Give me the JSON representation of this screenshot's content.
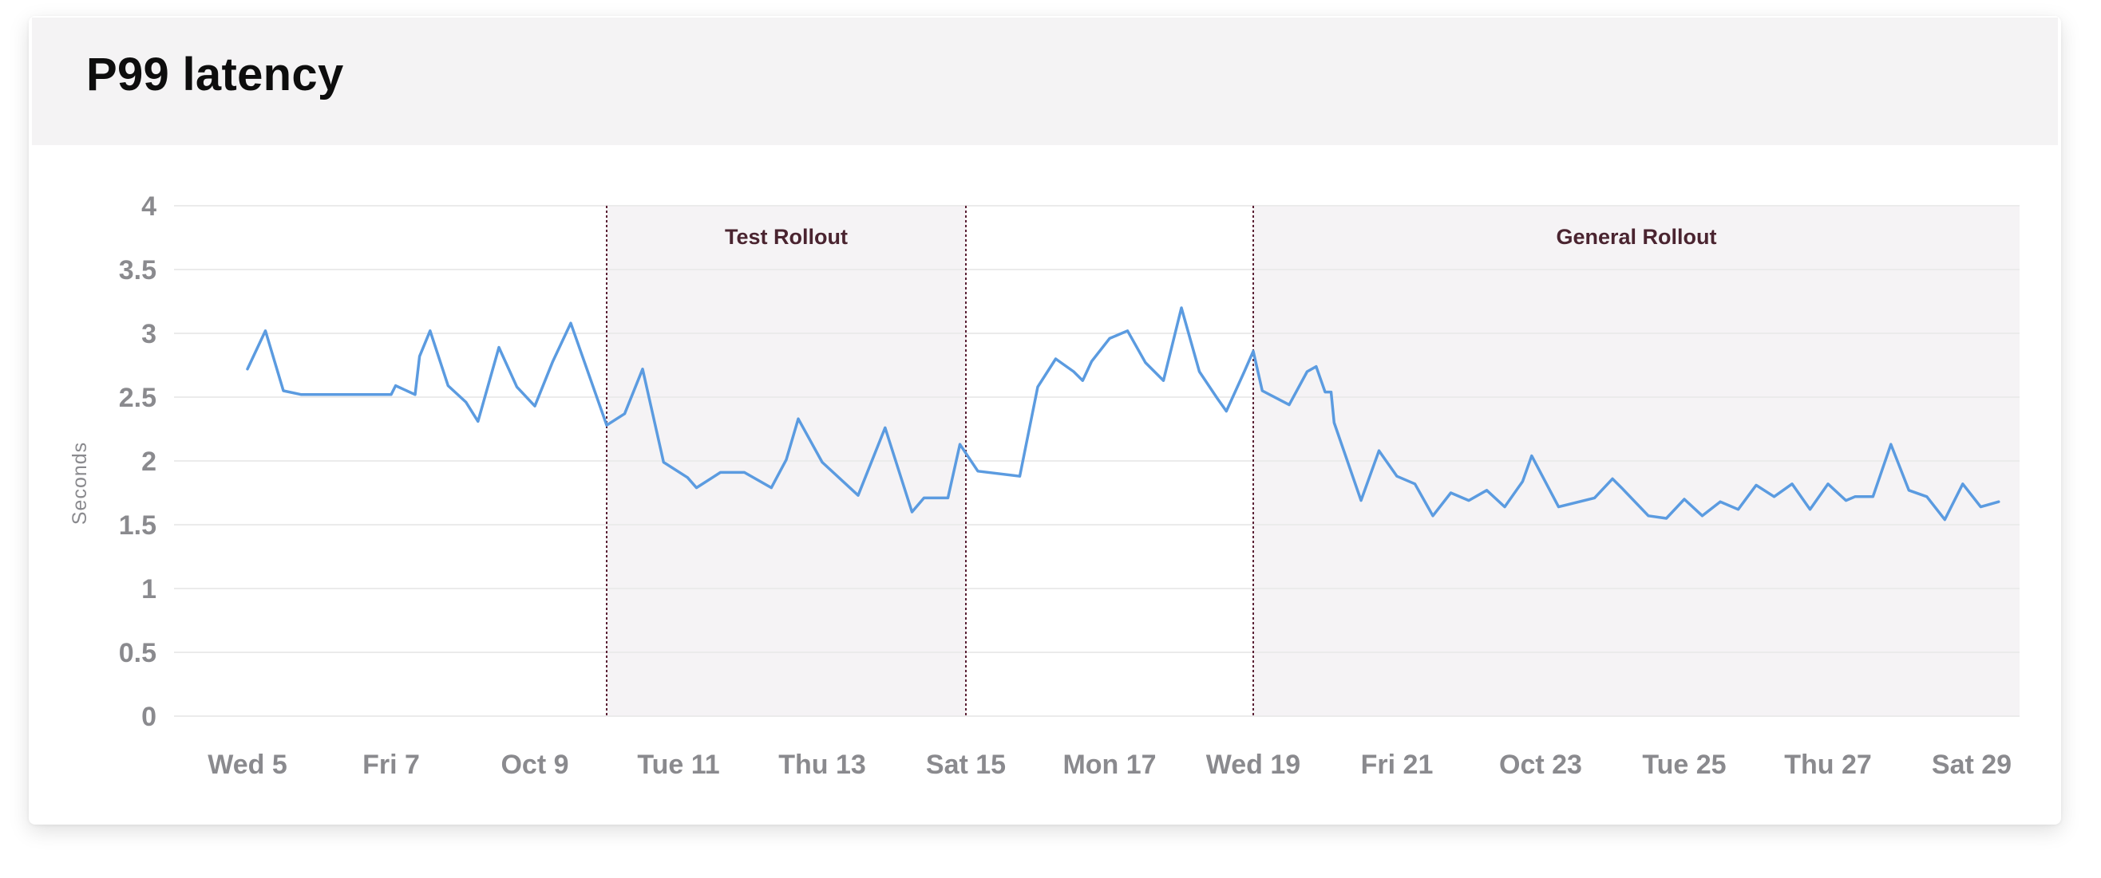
{
  "title": "P99 latency",
  "chart_data": {
    "type": "line",
    "title": "P99 latency",
    "xlabel": "",
    "ylabel": "Seconds",
    "ylim": [
      0,
      4
    ],
    "y_ticks": [
      "0",
      "0.5",
      "1",
      "1.5",
      "2",
      "2.5",
      "3",
      "3.5",
      "4"
    ],
    "x_tick_labels": [
      "Wed 5",
      "Fri 7",
      "Oct 9",
      "Tue 11",
      "Thu 13",
      "Sat 15",
      "Mon 17",
      "Wed 19",
      "Fri 21",
      "Oct 23",
      "Tue 25",
      "Thu 27",
      "Sat 29"
    ],
    "grid": true,
    "line_color": "#5b9be0",
    "band_color": "#f5f3f5",
    "marker_color": "#5a2034",
    "regions": [
      {
        "label": "Test Rollout",
        "start": "Oct 10",
        "end": "Oct 15"
      },
      {
        "label": "General Rollout",
        "start": "Oct 19",
        "end": "Oct 30"
      }
    ],
    "series": [
      {
        "name": "",
        "points": [
          [
            "Oct 5 00:00",
            2.72
          ],
          [
            "Oct 5 06:00",
            3.02
          ],
          [
            "Oct 5 12:00",
            2.55
          ],
          [
            "Oct 5 18:00",
            2.52
          ],
          [
            "Oct 6 00:00",
            2.52
          ],
          [
            "Oct 6 06:00",
            2.52
          ],
          [
            "Oct 6 12:00",
            2.52
          ],
          [
            "Oct 6 18:00",
            2.52
          ],
          [
            "Oct 7 00:00",
            2.52
          ],
          [
            "Oct 7 01:30",
            2.59
          ],
          [
            "Oct 7 08:00",
            2.52
          ],
          [
            "Oct 7 09:30",
            2.82
          ],
          [
            "Oct 7 13:00",
            3.02
          ],
          [
            "Oct 7 19:00",
            2.59
          ],
          [
            "Oct 8 01:00",
            2.46
          ],
          [
            "Oct 8 05:00",
            2.31
          ],
          [
            "Oct 8 12:00",
            2.89
          ],
          [
            "Oct 8 18:00",
            2.58
          ],
          [
            "Oct 9 00:00",
            2.43
          ],
          [
            "Oct 9 06:00",
            2.78
          ],
          [
            "Oct 9 12:00",
            3.08
          ],
          [
            "Oct 9 18:00",
            2.68
          ],
          [
            "Oct 10 00:00",
            2.28
          ],
          [
            "Oct 10 06:00",
            2.37
          ],
          [
            "Oct 10 12:00",
            2.72
          ],
          [
            "Oct 10 19:00",
            1.99
          ],
          [
            "Oct 11 03:00",
            1.87
          ],
          [
            "Oct 11 06:00",
            1.79
          ],
          [
            "Oct 11 14:00",
            1.91
          ],
          [
            "Oct 11 22:00",
            1.91
          ],
          [
            "Oct 12 07:00",
            1.79
          ],
          [
            "Oct 12 12:00",
            2.01
          ],
          [
            "Oct 12 16:00",
            2.33
          ],
          [
            "Oct 13 00:00",
            1.99
          ],
          [
            "Oct 13 12:00",
            1.73
          ],
          [
            "Oct 13 21:00",
            2.26
          ],
          [
            "Oct 14 06:00",
            1.6
          ],
          [
            "Oct 14 10:00",
            1.71
          ],
          [
            "Oct 14 18:00",
            1.71
          ],
          [
            "Oct 14 22:00",
            2.13
          ],
          [
            "Oct 15 04:00",
            1.92
          ],
          [
            "Oct 15 18:00",
            1.88
          ],
          [
            "Oct 16 00:00",
            2.58
          ],
          [
            "Oct 16 06:00",
            2.8
          ],
          [
            "Oct 16 12:00",
            2.7
          ],
          [
            "Oct 16 15:00",
            2.63
          ],
          [
            "Oct 16 18:00",
            2.78
          ],
          [
            "Oct 17 00:00",
            2.96
          ],
          [
            "Oct 17 06:00",
            3.02
          ],
          [
            "Oct 17 12:00",
            2.77
          ],
          [
            "Oct 17 18:00",
            2.63
          ],
          [
            "Oct 18 00:00",
            3.2
          ],
          [
            "Oct 18 06:00",
            2.7
          ],
          [
            "Oct 18 12:00",
            2.49
          ],
          [
            "Oct 18 15:00",
            2.39
          ],
          [
            "Oct 18 21:00",
            2.7
          ],
          [
            "Oct 19 00:00",
            2.86
          ],
          [
            "Oct 19 03:00",
            2.55
          ],
          [
            "Oct 19 12:00",
            2.44
          ],
          [
            "Oct 19 18:00",
            2.7
          ],
          [
            "Oct 19 21:00",
            2.74
          ],
          [
            "Oct 20 00:00",
            2.54
          ],
          [
            "Oct 20 02:00",
            2.54
          ],
          [
            "Oct 20 03:00",
            2.3
          ],
          [
            "Oct 20 12:00",
            1.69
          ],
          [
            "Oct 20 18:00",
            2.08
          ],
          [
            "Oct 21 00:00",
            1.88
          ],
          [
            "Oct 21 06:00",
            1.82
          ],
          [
            "Oct 21 12:00",
            1.57
          ],
          [
            "Oct 21 18:00",
            1.75
          ],
          [
            "Oct 22 00:00",
            1.69
          ],
          [
            "Oct 22 06:00",
            1.77
          ],
          [
            "Oct 22 12:00",
            1.64
          ],
          [
            "Oct 22 18:00",
            1.84
          ],
          [
            "Oct 22 21:00",
            2.04
          ],
          [
            "Oct 23 06:00",
            1.64
          ],
          [
            "Oct 23 18:00",
            1.71
          ],
          [
            "Oct 24 00:00",
            1.86
          ],
          [
            "Oct 24 03:00",
            1.79
          ],
          [
            "Oct 24 12:00",
            1.57
          ],
          [
            "Oct 24 18:00",
            1.55
          ],
          [
            "Oct 25 00:00",
            1.7
          ],
          [
            "Oct 25 06:00",
            1.57
          ],
          [
            "Oct 25 12:00",
            1.68
          ],
          [
            "Oct 25 18:00",
            1.62
          ],
          [
            "Oct 26 00:00",
            1.81
          ],
          [
            "Oct 26 06:00",
            1.72
          ],
          [
            "Oct 26 12:00",
            1.82
          ],
          [
            "Oct 26 18:00",
            1.62
          ],
          [
            "Oct 27 00:00",
            1.82
          ],
          [
            "Oct 27 06:00",
            1.69
          ],
          [
            "Oct 27 09:00",
            1.72
          ],
          [
            "Oct 27 15:00",
            1.72
          ],
          [
            "Oct 27 21:00",
            2.13
          ],
          [
            "Oct 28 03:00",
            1.77
          ],
          [
            "Oct 28 09:00",
            1.72
          ],
          [
            "Oct 28 15:00",
            1.54
          ],
          [
            "Oct 28 21:00",
            1.82
          ],
          [
            "Oct 29 03:00",
            1.64
          ],
          [
            "Oct 29 09:00",
            1.68
          ]
        ]
      }
    ]
  }
}
